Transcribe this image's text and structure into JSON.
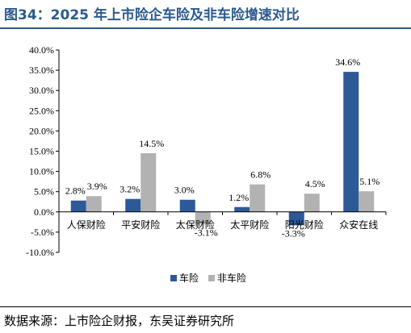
{
  "title": "图34：2025 年上市险企车险及非车险增速对比",
  "source": "数据来源：上市险企财报，东吴证券研究所",
  "colors": {
    "series1": "#2d5a96",
    "series2": "#b2b2b2",
    "title": "#2a5a8e"
  },
  "chart_data": {
    "type": "bar",
    "categories": [
      "人保财险",
      "平安财险",
      "太保财险",
      "太平财险",
      "阳光财险",
      "众安在线"
    ],
    "series": [
      {
        "name": "车险",
        "values": [
          2.8,
          3.2,
          3.0,
          1.2,
          -3.3,
          34.6
        ],
        "labels": [
          "2.8%",
          "3.2%",
          "3.0%",
          "1.2%",
          "-3.3%",
          "34.6%"
        ]
      },
      {
        "name": "非车险",
        "values": [
          3.9,
          14.5,
          -3.1,
          6.8,
          4.5,
          5.1
        ],
        "labels": [
          "3.9%",
          "14.5%",
          "-3.1%",
          "6.8%",
          "4.5%",
          "5.1%"
        ]
      }
    ],
    "ylim": [
      -10,
      40
    ],
    "yticks": [
      "-10.0%",
      "-5.0%",
      "0.0%",
      "5.0%",
      "10.0%",
      "15.0%",
      "20.0%",
      "25.0%",
      "30.0%",
      "35.0%",
      "40.0%"
    ],
    "ytick_values": [
      -10,
      -5,
      0,
      5,
      10,
      15,
      20,
      25,
      30,
      35,
      40
    ],
    "grid": false,
    "legend": "bottom-center"
  }
}
